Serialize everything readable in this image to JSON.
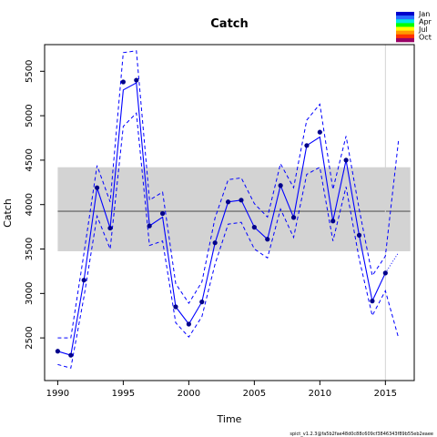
{
  "chart_data": {
    "type": "line",
    "title": "Catch",
    "xlabel": "Time",
    "ylabel": "Catch",
    "footer": "spict_v1.2.3@fa5b2fae48d0c88c609cf3846343f89b55eb2eaee",
    "xlim": [
      1989.0,
      2017.2
    ],
    "ylim": [
      2020,
      5800
    ],
    "x_ticks": [
      1990,
      1995,
      2000,
      2005,
      2010,
      2015
    ],
    "y_ticks": [
      2500,
      3000,
      3500,
      4000,
      4500,
      5000,
      5500
    ],
    "grid": false,
    "colors": {
      "estimate": "#0000ff",
      "observed_points": "#00008b",
      "msy_band": "#d3d3d3",
      "msy_line": "#808080",
      "vertical_marker": "#d3d3d3"
    },
    "series": [
      {
        "name": "",
        "role": "observed_catch_points",
        "x": [
          1990,
          1991,
          1992,
          1993,
          1994,
          1995,
          1996,
          1997,
          1998,
          1999,
          2000,
          2001,
          2002,
          2003,
          2004,
          2005,
          2006,
          2007,
          2008,
          2009,
          2010,
          2011,
          2012,
          2013,
          2014,
          2015
        ],
        "values": [
          2350,
          2305,
          3150,
          4190,
          3735,
          5380,
          5400,
          3760,
          3900,
          2850,
          2655,
          2905,
          3570,
          4030,
          4050,
          3745,
          3610,
          4215,
          3855,
          4665,
          4815,
          3815,
          4500,
          3655,
          2915,
          3230
        ]
      },
      {
        "name": "",
        "role": "estimated_catch",
        "x": [
          1990,
          1991,
          1992,
          1993,
          1994,
          1995,
          1996,
          1997,
          1998,
          1999,
          2000,
          2001,
          2002,
          2003,
          2004,
          2005,
          2006,
          2007,
          2008,
          2009,
          2010,
          2011,
          2012,
          2013,
          2014,
          2015
        ],
        "values": [
          2350,
          2305,
          3150,
          4190,
          3735,
          5290,
          5370,
          3760,
          3860,
          2850,
          2655,
          2905,
          3570,
          4030,
          4050,
          3745,
          3610,
          4215,
          3855,
          4665,
          4760,
          3815,
          4500,
          3655,
          2915,
          3230
        ]
      },
      {
        "name": "",
        "role": "upper_confidence_interval",
        "x": [
          1990,
          1991,
          1992,
          1993,
          1994,
          1995,
          1996,
          1997,
          1998,
          1999,
          2000,
          2001,
          2002,
          2003,
          2004,
          2005,
          2006,
          2007,
          2008,
          2009,
          2010,
          2011,
          2012,
          2013,
          2014,
          2015,
          2016
        ],
        "values": [
          2500,
          2500,
          3450,
          4440,
          4030,
          5710,
          5730,
          4050,
          4140,
          3110,
          2890,
          3130,
          3850,
          4280,
          4300,
          4010,
          3860,
          4460,
          4190,
          4950,
          5130,
          4170,
          4770,
          3950,
          3200,
          3420,
          4720
        ]
      },
      {
        "name": "",
        "role": "lower_confidence_interval",
        "x": [
          1990,
          1991,
          1992,
          1993,
          1994,
          1995,
          1996,
          1997,
          1998,
          1999,
          2000,
          2001,
          2002,
          2003,
          2004,
          2005,
          2006,
          2007,
          2008,
          2009,
          2010,
          2011,
          2012,
          2013,
          2014,
          2015,
          2016
        ],
        "values": [
          2200,
          2160,
          2960,
          3870,
          3500,
          4880,
          5030,
          3540,
          3590,
          2670,
          2510,
          2740,
          3330,
          3780,
          3800,
          3500,
          3400,
          3950,
          3630,
          4340,
          4420,
          3590,
          4200,
          3390,
          2750,
          3030,
          2500
        ]
      },
      {
        "name": "",
        "role": "prediction",
        "x": [
          2015,
          2016
        ],
        "values": [
          3230,
          3460
        ]
      }
    ],
    "msy_band": {
      "center": 3925,
      "lower": 3475,
      "upper": 4420,
      "x_range": [
        1990,
        2016.9
      ]
    },
    "vertical_marker_x": 2015,
    "legend": {
      "placement": "top-right",
      "labels": [
        "Jan",
        "Apr",
        "Jul",
        "Oct"
      ],
      "colors": [
        "#0000cc",
        "#2a6cff",
        "#00e6e6",
        "#00ff00",
        "#ffff00",
        "#ff9900",
        "#ff3300",
        "#990066"
      ]
    }
  }
}
